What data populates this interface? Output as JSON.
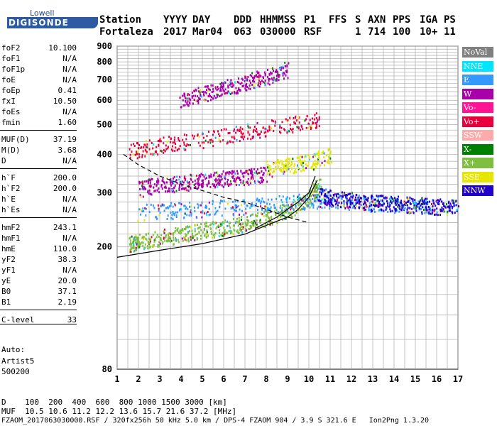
{
  "logo": {
    "line1": "Lowell",
    "line2": "DIGISONDE"
  },
  "header": {
    "labels": [
      "Station",
      "YYYY",
      "DAY",
      "DDD",
      "HHMMSS",
      "P1",
      "FFS",
      "S",
      "AXN",
      "PPS",
      "IGA",
      "PS"
    ],
    "values": [
      "Fortaleza",
      "2017",
      "Mar04",
      "063",
      "030000",
      "RSF",
      "",
      "1",
      "714",
      "100",
      "10+",
      "11"
    ]
  },
  "params": [
    {
      "k": "foF2",
      "v": "10.100"
    },
    {
      "k": "foF1",
      "v": "N/A"
    },
    {
      "k": "foF1p",
      "v": "N/A"
    },
    {
      "k": "foE",
      "v": "N/A"
    },
    {
      "k": "foEp",
      "v": "0.41"
    },
    {
      "k": "fxI",
      "v": "10.50"
    },
    {
      "k": "foEs",
      "v": "N/A"
    },
    {
      "k": "fmin",
      "v": "1.60"
    },
    {
      "k": "MUF(D)",
      "v": "37.19"
    },
    {
      "k": "M(D)",
      "v": "3.68"
    },
    {
      "k": "D",
      "v": "N/A"
    },
    {
      "k": "h`F",
      "v": "200.0"
    },
    {
      "k": "h`F2",
      "v": "200.0"
    },
    {
      "k": "h`E",
      "v": "N/A"
    },
    {
      "k": "h`Es",
      "v": "N/A"
    },
    {
      "k": "hmF2",
      "v": "243.1"
    },
    {
      "k": "hmF1",
      "v": "N/A"
    },
    {
      "k": "hmE",
      "v": "110.0"
    },
    {
      "k": "yF2",
      "v": "38.3"
    },
    {
      "k": "yF1",
      "v": "N/A"
    },
    {
      "k": "yE",
      "v": "20.0"
    },
    {
      "k": "B0",
      "v": "37.1"
    },
    {
      "k": "B1",
      "v": "2.19"
    },
    {
      "k": "C-level",
      "v": "33"
    }
  ],
  "auto": {
    "line1": "Auto:",
    "line2": "Artist5",
    "line3": "500200"
  },
  "legend": [
    {
      "label": "NoVal",
      "bg": "#808080",
      "fg": "#ffffff"
    },
    {
      "label": "NNE",
      "bg": "#00e5ff",
      "fg": "#ffffff"
    },
    {
      "label": "E",
      "bg": "#3399ff",
      "fg": "#ffffff"
    },
    {
      "label": "W",
      "bg": "#aa00aa",
      "fg": "#ffffff"
    },
    {
      "label": "Vo-",
      "bg": "#ff1493",
      "fg": "#ffffff"
    },
    {
      "label": "Vo+",
      "bg": "#e8003c",
      "fg": "#ffffff"
    },
    {
      "label": "SSW",
      "bg": "#ffaaaa",
      "fg": "#ffffff"
    },
    {
      "label": "X-",
      "bg": "#008000",
      "fg": "#ffffff"
    },
    {
      "label": "X+",
      "bg": "#7fbf3f",
      "fg": "#ffffff"
    },
    {
      "label": "SSE",
      "bg": "#e6e600",
      "fg": "#ffffff"
    },
    {
      "label": "NNW",
      "bg": "#2000cc",
      "fg": "#ffffff"
    }
  ],
  "bottom": {
    "line1": "D    100  200  400  600  800 1000 1500 3000 [km]",
    "line2": "MUF  10.5 10.6 11.2 12.2 13.6 15.7 21.6 37.2 [MHz]",
    "line3": "FZAOM_2017063030000.RSF / 320fx256h 50 kHz 5.0 km / DPS-4 FZAOM 904 / 3.9 S 321.6 E   Ion2Png 1.3.20"
  },
  "chart_data": {
    "type": "scatter",
    "x_ticks": [
      "1",
      "2",
      "3",
      "4",
      "5",
      "6",
      "7",
      "8",
      "9",
      "10",
      "11",
      "12",
      "13",
      "14",
      "15",
      "16",
      "17"
    ],
    "y_ticks": [
      "80",
      "200",
      "300",
      "400",
      "500",
      "600",
      "700",
      "800",
      "900"
    ],
    "xlim": [
      1,
      17
    ],
    "y_scale": "log",
    "ylim": [
      80,
      900
    ],
    "grid": true,
    "legend_position": "right",
    "series": [
      {
        "color_key": "X+",
        "x": [
          1.6,
          2,
          3,
          4,
          5,
          6,
          7,
          8,
          9,
          10,
          10.5
        ],
        "y": [
          205,
          210,
          215,
          220,
          228,
          232,
          240,
          250,
          265,
          290,
          320
        ]
      },
      {
        "color_key": "W",
        "x": [
          2,
          3,
          4,
          5,
          6,
          7,
          8
        ],
        "y": [
          310,
          320,
          325,
          330,
          335,
          340,
          345
        ]
      },
      {
        "color_key": "E",
        "x": [
          2,
          4,
          6,
          8,
          10,
          12,
          14,
          16
        ],
        "y": [
          260,
          265,
          270,
          275,
          285,
          280,
          275,
          270
        ]
      },
      {
        "color_key": "Vo+",
        "x": [
          1.5,
          3,
          5,
          7,
          9,
          10.5
        ],
        "y": [
          410,
          430,
          450,
          475,
          500,
          520
        ]
      },
      {
        "color_key": "W",
        "x": [
          4,
          5,
          6,
          7,
          8,
          9
        ],
        "y": [
          600,
          630,
          660,
          690,
          720,
          760
        ]
      },
      {
        "color_key": "SSE",
        "x": [
          8,
          9,
          10,
          11
        ],
        "y": [
          360,
          370,
          380,
          400
        ]
      },
      {
        "color_key": "NNW",
        "x": [
          10.5,
          11,
          12,
          13,
          14,
          15,
          16,
          17
        ],
        "y": [
          300,
          290,
          285,
          280,
          278,
          275,
          272,
          270
        ]
      }
    ],
    "curves": [
      {
        "style": "solid",
        "x": [
          1,
          3,
          5,
          7,
          8,
          9,
          9.5,
          10,
          10.4
        ],
        "y": [
          185,
          195,
          205,
          220,
          235,
          250,
          265,
          290,
          330
        ]
      },
      {
        "style": "dashed",
        "x": [
          1.3,
          2,
          3,
          4,
          5,
          6,
          7,
          8,
          9,
          10
        ],
        "y": [
          400,
          370,
          340,
          320,
          305,
          290,
          280,
          265,
          250,
          240
        ]
      },
      {
        "style": "solid",
        "x": [
          7.5,
          8,
          8.5,
          9,
          9.5,
          10,
          10.3
        ],
        "y": [
          230,
          240,
          250,
          265,
          280,
          300,
          340
        ]
      }
    ]
  }
}
